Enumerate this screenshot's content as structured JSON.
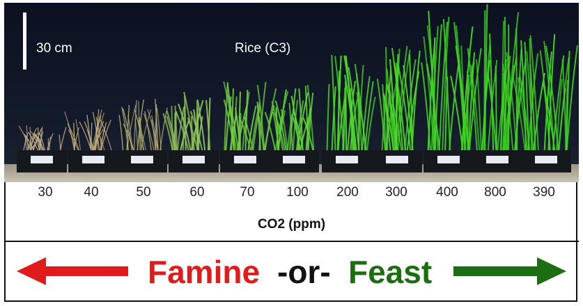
{
  "photo": {
    "scale_label": "30 cm",
    "title": "Rice (C3)"
  },
  "co2_levels": [
    "30",
    "40",
    "50",
    "60",
    "70",
    "100",
    "200",
    "300",
    "400",
    "800",
    "390"
  ],
  "axis_label": "CO2 (ppm)",
  "banner": {
    "famine": "Famine",
    "or": "-or-",
    "feast": "Feast"
  },
  "colors": {
    "famine": "#e01b1b",
    "feast": "#1d6e12",
    "background": "#0d1422"
  }
}
